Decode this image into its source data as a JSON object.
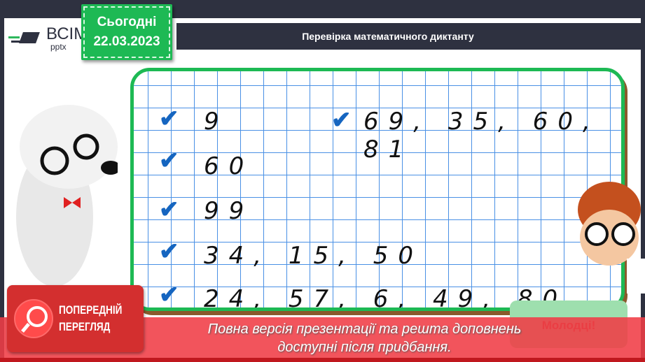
{
  "logo": {
    "line1": "ВСІМ",
    "line2": "pptx"
  },
  "date_box": {
    "label": "Сьогодні",
    "date": "22.03.2023"
  },
  "title": "Перевірка математичного диктанту",
  "dictation": {
    "left_rows": [
      "9",
      "60",
      "99",
      "34, 15, 50",
      "24, 57, 6, 49, 80"
    ],
    "right_rows": [
      "69, 35, 60, 81"
    ]
  },
  "bubble": "Молодці!",
  "preview_badge": {
    "line1": "ПОПЕРЕДНІЙ",
    "line2": "ПЕРЕГЛЯД"
  },
  "banner": {
    "line1": "Повна версія презентації та решта доповнень",
    "line2": "доступні після придбання."
  },
  "colors": {
    "green": "#1db954",
    "dark": "#2e3140",
    "grid": "#2a7de1",
    "check": "#1565c0",
    "banner": "#f03c46"
  }
}
